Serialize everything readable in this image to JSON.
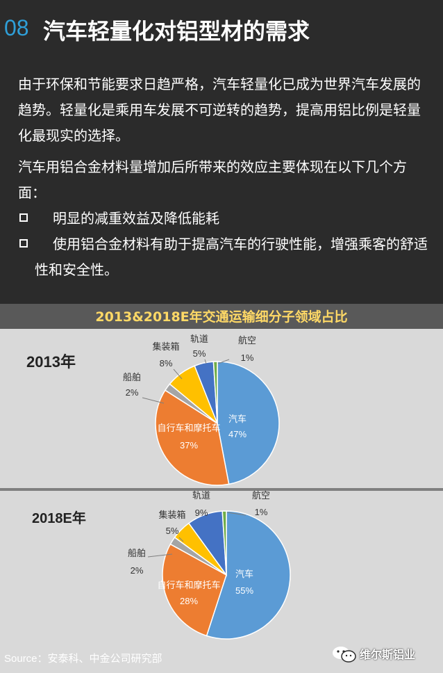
{
  "header": {
    "number": "08",
    "title": "汽车轻量化对铝型材的需求"
  },
  "intro": {
    "para1": "由于环保和节能要求日趋严格，汽车轻量化已成为世界汽车发展的趋势。轻量化是乘用车发展不可逆转的趋势，提高用铝比例是轻量化最现实的选择。",
    "para2": "汽车用铝合金材料量增加后所带来的效应主要体现在以下几个方面：",
    "bullets": [
      "明显的减重效益及降低能耗",
      "使用铝合金材料有助于提高汽车的行驶性能，增强乘客的舒适性和安全性。"
    ]
  },
  "chart_data": {
    "type": "pie",
    "title": "2013&2018E年交通运输细分子领域占比",
    "charts": [
      {
        "label": "2013年",
        "slices": [
          {
            "name": "汽车",
            "value": 47,
            "pct": "47%",
            "color": "#5b9bd5"
          },
          {
            "name": "自行车和摩托车",
            "value": 37,
            "pct": "37%",
            "color": "#ed7d31"
          },
          {
            "name": "船舶",
            "value": 2,
            "pct": "2%",
            "color": "#a5a5a5"
          },
          {
            "name": "集装箱",
            "value": 8,
            "pct": "8%",
            "color": "#ffc000"
          },
          {
            "name": "轨道",
            "value": 5,
            "pct": "5%",
            "color": "#4472c4"
          },
          {
            "name": "航空",
            "value": 1,
            "pct": "1%",
            "color": "#70ad47"
          }
        ]
      },
      {
        "label": "2018E年",
        "slices": [
          {
            "name": "汽车",
            "value": 55,
            "pct": "55%",
            "color": "#5b9bd5"
          },
          {
            "name": "自行车和摩托车",
            "value": 28,
            "pct": "28%",
            "color": "#ed7d31"
          },
          {
            "name": "船舶",
            "value": 2,
            "pct": "2%",
            "color": "#a5a5a5"
          },
          {
            "name": "集装箱",
            "value": 5,
            "pct": "5%",
            "color": "#ffc000"
          },
          {
            "name": "轨道",
            "value": 9,
            "pct": "9%",
            "color": "#4472c4"
          },
          {
            "name": "航空",
            "value": 1,
            "pct": "1%",
            "color": "#70ad47"
          }
        ]
      }
    ]
  },
  "source": "Source：安泰科、中金公司研究部",
  "watermark": "维尔斯铝业"
}
